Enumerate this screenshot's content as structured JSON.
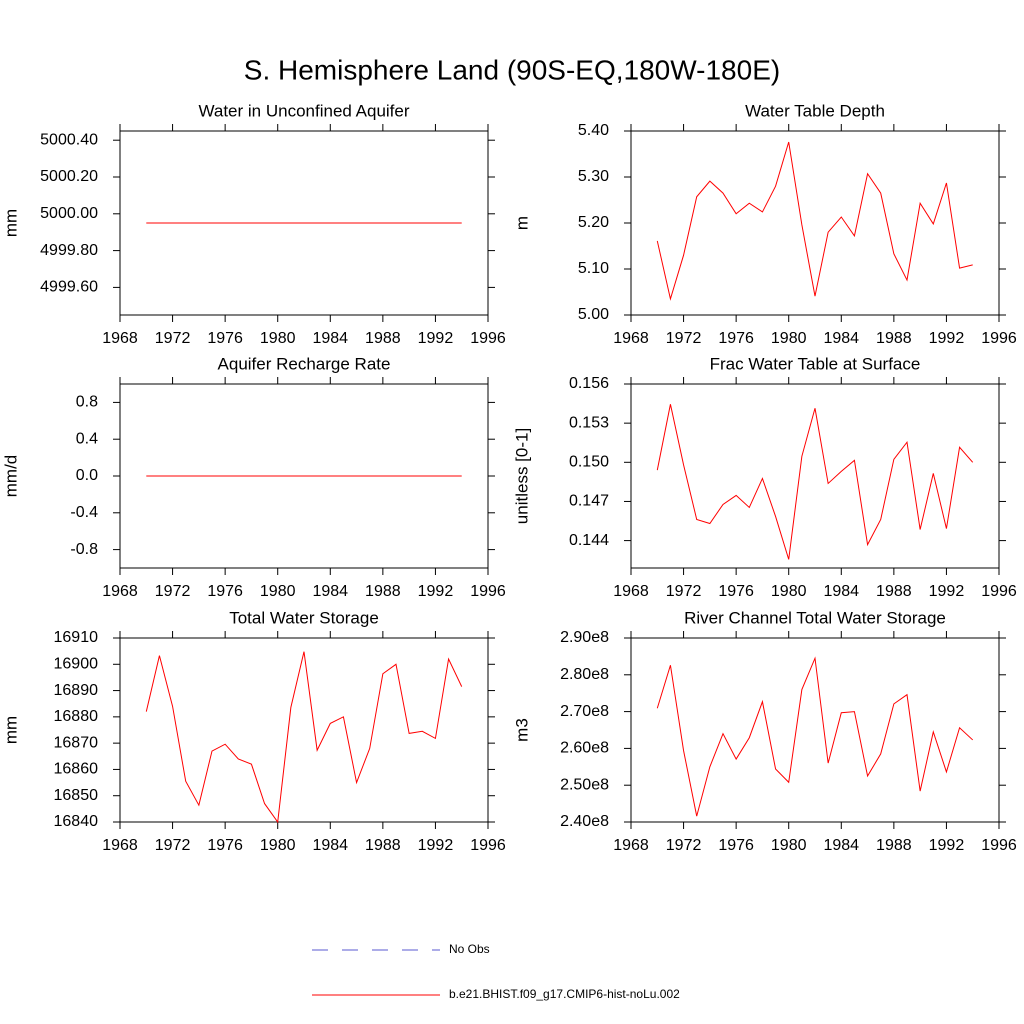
{
  "title": "S. Hemisphere Land (90S-EQ,180W-180E)",
  "legend": [
    {
      "name": "No Obs",
      "color": "#5a5ad0",
      "dashed": true
    },
    {
      "name": "b.e21.BHIST.f09_g17.CMIP6-hist-noLu.002",
      "color": "#ff0000",
      "dashed": false
    }
  ],
  "chart_data": [
    {
      "type": "line",
      "title": "Water in Unconfined Aquifer",
      "y_label": "mm",
      "x": [
        1970,
        1971,
        1972,
        1973,
        1974,
        1975,
        1976,
        1977,
        1978,
        1979,
        1980,
        1981,
        1982,
        1983,
        1984,
        1985,
        1986,
        1987,
        1988,
        1989,
        1990,
        1991,
        1992,
        1993,
        1994
      ],
      "series": [
        {
          "color": "#ff0000",
          "values": [
            4999.95,
            4999.95,
            4999.95,
            4999.95,
            4999.95,
            4999.95,
            4999.95,
            4999.95,
            4999.95,
            4999.95,
            4999.95,
            4999.95,
            4999.95,
            4999.95,
            4999.95,
            4999.95,
            4999.95,
            4999.95,
            4999.95,
            4999.95,
            4999.95,
            4999.95,
            4999.95,
            4999.95,
            4999.95
          ]
        }
      ],
      "xlim": [
        1968,
        1996
      ],
      "xticks": [
        1968,
        1972,
        1976,
        1980,
        1984,
        1988,
        1992,
        1996
      ],
      "ylim": [
        4999.45,
        5000.45
      ],
      "yticks": [
        {
          "value": 5000.4,
          "label": "5000.40"
        },
        {
          "value": 5000.2,
          "label": "5000.20"
        },
        {
          "value": 5000.0,
          "label": "5000.00"
        },
        {
          "value": 4999.8,
          "label": "4999.80"
        },
        {
          "value": 4999.6,
          "label": "4999.60"
        }
      ]
    },
    {
      "type": "line",
      "title": "Water Table Depth",
      "y_label": "m",
      "x": [
        1970,
        1971,
        1972,
        1973,
        1974,
        1975,
        1976,
        1977,
        1978,
        1979,
        1980,
        1981,
        1982,
        1983,
        1984,
        1985,
        1986,
        1987,
        1988,
        1989,
        1990,
        1991,
        1992,
        1993,
        1994
      ],
      "series": [
        {
          "color": "#ff0000",
          "values": [
            5.161,
            5.035,
            5.13,
            5.257,
            5.291,
            5.265,
            5.22,
            5.243,
            5.224,
            5.28,
            5.376,
            5.196,
            5.041,
            5.18,
            5.213,
            5.172,
            5.307,
            5.265,
            5.133,
            5.076,
            5.243,
            5.198,
            5.287,
            5.102,
            5.109
          ]
        }
      ],
      "xlim": [
        1968,
        1996
      ],
      "xticks": [
        1968,
        1972,
        1976,
        1980,
        1984,
        1988,
        1992,
        1996
      ],
      "ylim": [
        5.0,
        5.4
      ],
      "yticks": [
        {
          "value": 5.4,
          "label": "5.40"
        },
        {
          "value": 5.3,
          "label": "5.30"
        },
        {
          "value": 5.2,
          "label": "5.20"
        },
        {
          "value": 5.1,
          "label": "5.10"
        },
        {
          "value": 5.0,
          "label": "5.00"
        }
      ]
    },
    {
      "type": "line",
      "title": "Aquifer Recharge Rate",
      "y_label": "mm/d",
      "x": [
        1970,
        1971,
        1972,
        1973,
        1974,
        1975,
        1976,
        1977,
        1978,
        1979,
        1980,
        1981,
        1982,
        1983,
        1984,
        1985,
        1986,
        1987,
        1988,
        1989,
        1990,
        1991,
        1992,
        1993,
        1994
      ],
      "series": [
        {
          "color": "#ff0000",
          "values": [
            0,
            0,
            0,
            0,
            0,
            0,
            0,
            0,
            0,
            0,
            0,
            0,
            0,
            0,
            0,
            0,
            0,
            0,
            0,
            0,
            0,
            0,
            0,
            0,
            0
          ]
        }
      ],
      "xlim": [
        1968,
        1996
      ],
      "xticks": [
        1968,
        1972,
        1976,
        1980,
        1984,
        1988,
        1992,
        1996
      ],
      "ylim": [
        -1,
        1
      ],
      "yticks": [
        0.8,
        0.4,
        {
          "value": 0,
          "label": "0.0"
        },
        -0.4,
        -0.8
      ]
    },
    {
      "type": "line",
      "title": "Frac Water Table at Surface",
      "y_label": "unitless [0-1]",
      "x": [
        1970,
        1971,
        1972,
        1973,
        1974,
        1975,
        1976,
        1977,
        1978,
        1979,
        1980,
        1981,
        1982,
        1983,
        1984,
        1985,
        1986,
        1987,
        1988,
        1989,
        1990,
        1991,
        1992,
        1993,
        1994
      ],
      "series": [
        {
          "color": "#ff0000",
          "values": [
            0.1494,
            0.15445,
            0.1498,
            0.14562,
            0.14531,
            0.14677,
            0.14746,
            0.14654,
            0.14876,
            0.14585,
            0.14256,
            0.15046,
            0.15414,
            0.14838,
            0.1493,
            0.15015,
            0.14369,
            0.14562,
            0.15023,
            0.15154,
            0.14485,
            0.14915,
            0.14492,
            0.15115,
            0.15
          ]
        }
      ],
      "xlim": [
        1968,
        1996
      ],
      "xticks": [
        1968,
        1972,
        1976,
        1980,
        1984,
        1988,
        1992,
        1996
      ],
      "ylim": [
        0.1419,
        0.156
      ],
      "yticks": [
        0.156,
        0.153,
        {
          "value": 0.15,
          "label": "0.150"
        },
        0.147,
        0.144
      ]
    },
    {
      "type": "line",
      "title": "Total Water Storage",
      "y_label": "mm",
      "x": [
        1970,
        1971,
        1972,
        1973,
        1974,
        1975,
        1976,
        1977,
        1978,
        1979,
        1980,
        1981,
        1982,
        1983,
        1984,
        1985,
        1986,
        1987,
        1988,
        1989,
        1990,
        1991,
        1992,
        1993,
        1994
      ],
      "series": [
        {
          "color": "#ff0000",
          "values": [
            16882,
            16903.3,
            16884,
            16855.5,
            16846.4,
            16867,
            16869.6,
            16864,
            16862,
            16847,
            16840,
            16883.6,
            16904.8,
            16867.3,
            16877.5,
            16880,
            16855,
            16868,
            16896.4,
            16900,
            16873.7,
            16874.5,
            16871.8,
            16902,
            16891.5
          ]
        }
      ],
      "xlim": [
        1968,
        1996
      ],
      "xticks": [
        1968,
        1972,
        1976,
        1980,
        1984,
        1988,
        1992,
        1996
      ],
      "ylim": [
        16840,
        16910
      ],
      "yticks": [
        16910,
        16900,
        16890,
        16880,
        16870,
        16860,
        16850,
        16840
      ]
    },
    {
      "type": "line",
      "title": "River Channel Total Water Storage",
      "y_label": "m3",
      "x": [
        1970,
        1971,
        1972,
        1973,
        1974,
        1975,
        1976,
        1977,
        1978,
        1979,
        1980,
        1981,
        1982,
        1983,
        1984,
        1985,
        1986,
        1987,
        1988,
        1989,
        1990,
        1991,
        1992,
        1993,
        1994
      ],
      "series": [
        {
          "color": "#ff0000",
          "values": [
            270900000,
            282600000,
            259400000,
            241600000,
            255000000,
            264000000,
            257100000,
            262900000,
            272700000,
            254400000,
            250800000,
            276000000,
            284500000,
            256000000,
            269700000,
            270000000,
            252500000,
            258500000,
            272100000,
            274600000,
            248400000,
            264500000,
            253600000,
            265600000,
            262300000
          ]
        }
      ],
      "xlim": [
        1968,
        1996
      ],
      "xticks": [
        1968,
        1972,
        1976,
        1980,
        1984,
        1988,
        1992,
        1996
      ],
      "ylim": [
        240000000,
        290000000
      ],
      "yticks": [
        {
          "value": 290000000,
          "label": "2.90e8"
        },
        {
          "value": 280000000,
          "label": "2.80e8"
        },
        {
          "value": 270000000,
          "label": "2.70e8"
        },
        {
          "value": 260000000,
          "label": "2.60e8"
        },
        {
          "value": 250000000,
          "label": "2.50e8"
        },
        {
          "value": 240000000,
          "label": "2.40e8"
        }
      ]
    }
  ]
}
